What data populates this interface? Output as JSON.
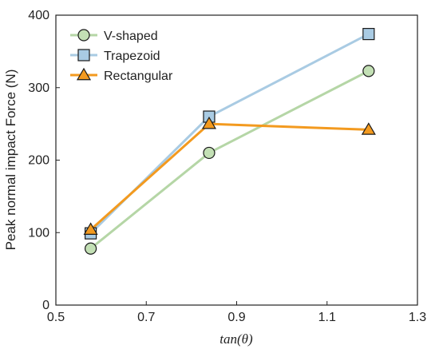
{
  "chart_data": {
    "type": "line",
    "xlabel": "tan(θ)",
    "ylabel": "Peak normal impact Force (N)",
    "xlim": [
      0.5,
      1.3
    ],
    "ylim": [
      0,
      400
    ],
    "xticks": [
      0.5,
      0.7,
      0.9,
      1.1,
      1.3
    ],
    "yticks": [
      0,
      100,
      200,
      300,
      400
    ],
    "xtick_labels": [
      "0.5",
      "0.7",
      "0.9",
      "1.1",
      "1.3"
    ],
    "ytick_labels": [
      "0",
      "100",
      "200",
      "300",
      "400"
    ],
    "grid": false,
    "legend_position": "top-left",
    "series": [
      {
        "name": "V-shaped",
        "marker": "circle",
        "line_color": "#b5d6a6",
        "marker_fill": "#c3e0b5",
        "x": [
          0.577,
          0.839,
          1.192
        ],
        "y": [
          78,
          210,
          323
        ]
      },
      {
        "name": "Trapezoid",
        "marker": "square",
        "line_color": "#a9cbe3",
        "marker_fill": "#a9cbe3",
        "x": [
          0.577,
          0.839,
          1.192
        ],
        "y": [
          99,
          260,
          374
        ]
      },
      {
        "name": "Rectangular",
        "marker": "triangle",
        "line_color": "#f39a1f",
        "marker_fill": "#f39a1f",
        "x": [
          0.577,
          0.839,
          1.192
        ],
        "y": [
          104,
          250,
          242
        ]
      }
    ]
  }
}
